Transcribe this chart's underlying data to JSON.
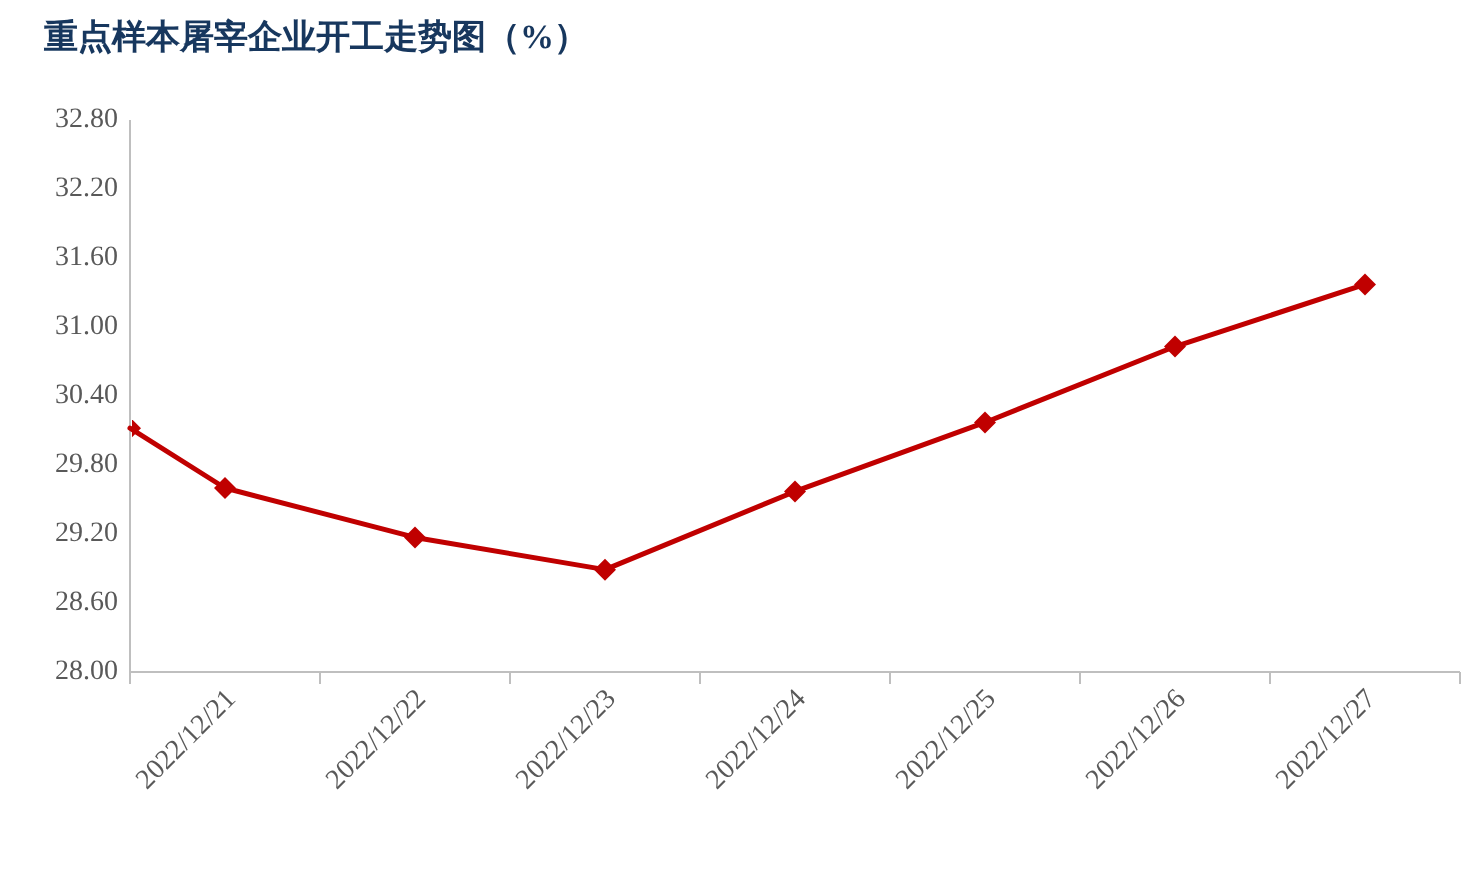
{
  "chart_data": {
    "type": "line",
    "title": "重点样本屠宰企业开工走势图（%）",
    "series": [
      {
        "color": "#c00000",
        "x": [
          "2022-12-20T12:00",
          "2022-12-21",
          "2022-12-22",
          "2022-12-23",
          "2022-12-24",
          "2022-12-25",
          "2022-12-26",
          "2022-12-27"
        ],
        "values": [
          30.12,
          29.6,
          29.17,
          28.89,
          29.57,
          30.17,
          30.83,
          31.37
        ]
      }
    ],
    "xlim": [
      "2022-12-20T12:00",
      "2022-12-27T12:00"
    ],
    "xticks": [
      {
        "value": "2022-12-20T12:00",
        "label": null
      },
      {
        "value": "2022-12-21",
        "label": "2022/12/21"
      },
      {
        "value": "2022-12-21T12:00",
        "label": null
      },
      {
        "value": "2022-12-22",
        "label": "2022/12/22"
      },
      {
        "value": "2022-12-22T12:00",
        "label": null
      },
      {
        "value": "2022-12-23",
        "label": "2022/12/23"
      },
      {
        "value": "2022-12-23T12:00",
        "label": null
      },
      {
        "value": "2022-12-24",
        "label": "2022/12/24"
      },
      {
        "value": "2022-12-24T12:00",
        "label": null
      },
      {
        "value": "2022-12-25",
        "label": "2022/12/25"
      },
      {
        "value": "2022-12-25T12:00",
        "label": null
      },
      {
        "value": "2022-12-26",
        "label": "2022/12/26"
      },
      {
        "value": "2022-12-26T12:00",
        "label": null
      },
      {
        "value": "2022-12-27",
        "label": "2022/12/27"
      },
      {
        "value": "2022-12-27T12:00",
        "label": null
      }
    ],
    "ylim": [
      28,
      32.8
    ],
    "yticks": [
      {
        "value": 28,
        "label": "28.00"
      },
      {
        "value": 28.6,
        "label": "28.60"
      },
      {
        "value": 29.2,
        "label": "29.20"
      },
      {
        "value": 29.8,
        "label": "29.80"
      },
      {
        "value": 30.4,
        "label": "30.40"
      },
      {
        "value": 31,
        "label": "31.00"
      },
      {
        "value": 31.6,
        "label": "31.60"
      },
      {
        "value": 32.2,
        "label": "32.20"
      },
      {
        "value": 32.8,
        "label": "32.80"
      }
    ],
    "marker": "diamond",
    "grid": false
  }
}
